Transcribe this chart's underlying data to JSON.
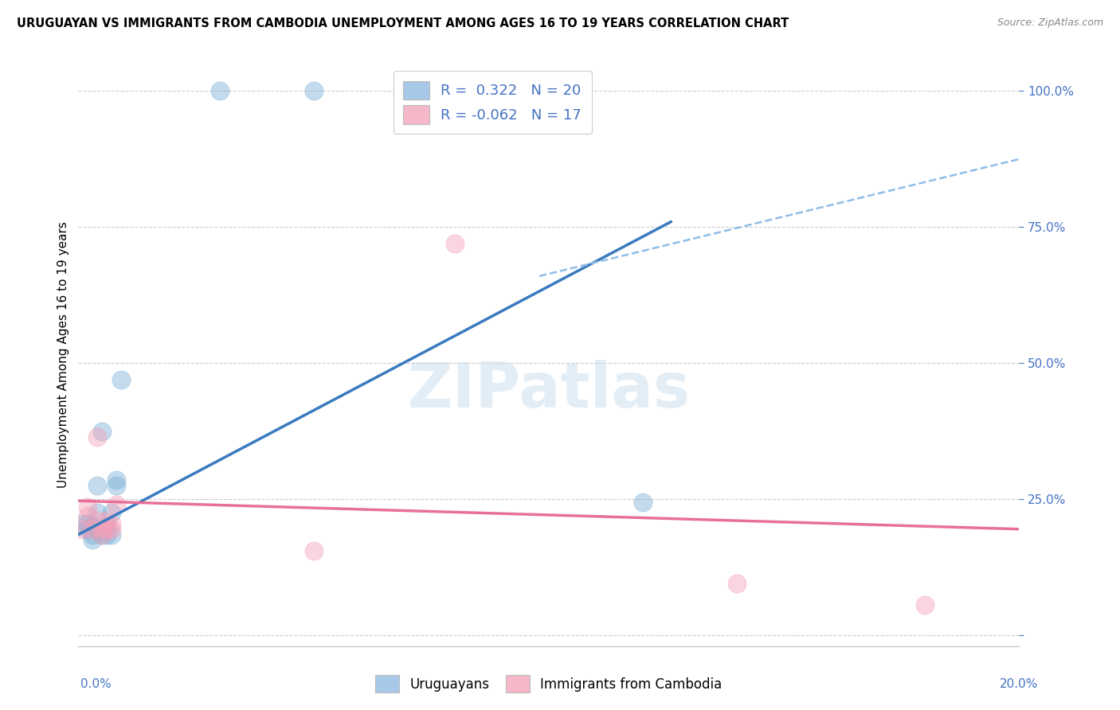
{
  "title": "URUGUAYAN VS IMMIGRANTS FROM CAMBODIA UNEMPLOYMENT AMONG AGES 16 TO 19 YEARS CORRELATION CHART",
  "source": "Source: ZipAtlas.com",
  "ylabel": "Unemployment Among Ages 16 to 19 years",
  "yticks_vals": [
    0.0,
    0.25,
    0.5,
    0.75,
    1.0
  ],
  "yticks_labels": [
    "",
    "25.0%",
    "50.0%",
    "75.0%",
    "100.0%"
  ],
  "legend_entries": [
    {
      "label": "R =  0.322   N = 20",
      "color": "#a8c8e8"
    },
    {
      "label": "R = -0.062   N = 17",
      "color": "#f5b8c8"
    }
  ],
  "legend_labels_bottom": [
    "Uruguayans",
    "Immigrants from Cambodia"
  ],
  "watermark": "ZIPatlas",
  "blue_scatter": [
    [
      0.001,
      0.205
    ],
    [
      0.002,
      0.205
    ],
    [
      0.002,
      0.195
    ],
    [
      0.003,
      0.2
    ],
    [
      0.003,
      0.185
    ],
    [
      0.003,
      0.175
    ],
    [
      0.004,
      0.225
    ],
    [
      0.004,
      0.275
    ],
    [
      0.005,
      0.375
    ],
    [
      0.005,
      0.185
    ],
    [
      0.006,
      0.2
    ],
    [
      0.006,
      0.185
    ],
    [
      0.007,
      0.185
    ],
    [
      0.007,
      0.225
    ],
    [
      0.008,
      0.275
    ],
    [
      0.008,
      0.285
    ],
    [
      0.009,
      0.47
    ],
    [
      0.03,
      1.0
    ],
    [
      0.05,
      1.0
    ],
    [
      0.12,
      0.245
    ]
  ],
  "pink_scatter": [
    [
      0.001,
      0.195
    ],
    [
      0.002,
      0.235
    ],
    [
      0.002,
      0.22
    ],
    [
      0.003,
      0.195
    ],
    [
      0.004,
      0.21
    ],
    [
      0.004,
      0.365
    ],
    [
      0.005,
      0.185
    ],
    [
      0.005,
      0.195
    ],
    [
      0.006,
      0.21
    ],
    [
      0.006,
      0.195
    ],
    [
      0.007,
      0.205
    ],
    [
      0.007,
      0.195
    ],
    [
      0.008,
      0.24
    ],
    [
      0.05,
      0.155
    ],
    [
      0.08,
      0.72
    ],
    [
      0.14,
      0.095
    ],
    [
      0.18,
      0.055
    ]
  ],
  "blue_line_solid": {
    "x0": 0.0,
    "y0": 0.185,
    "x1": 0.126,
    "y1": 0.76
  },
  "blue_line_dashed": {
    "x0": 0.098,
    "y0": 0.66,
    "x1": 0.2,
    "y1": 0.875
  },
  "pink_line": {
    "x0": 0.0,
    "y0": 0.247,
    "x1": 0.2,
    "y1": 0.195
  },
  "xlim": [
    0.0,
    0.2
  ],
  "ylim": [
    -0.02,
    1.05
  ],
  "blue_scatter_color": "#7ab0d8",
  "pink_scatter_color": "#f4a0b8",
  "blue_line_color": "#3a7abf",
  "blue_dashed_color": "#90bce8",
  "pink_line_color": "#e87098",
  "title_fontsize": 10.5,
  "axis_color": "#4472c4",
  "background_color": "#ffffff",
  "grid_color": "#cccccc"
}
